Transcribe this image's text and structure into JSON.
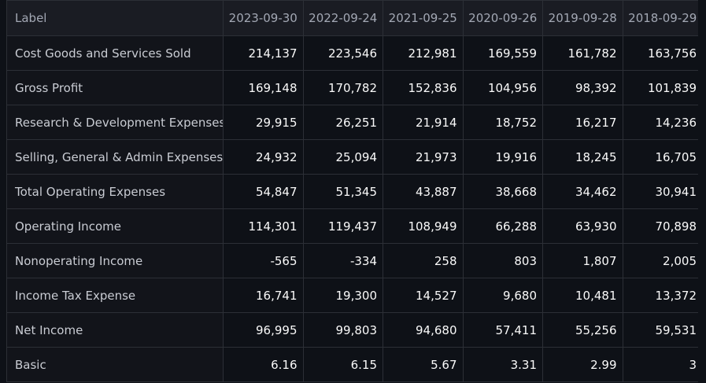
{
  "table": {
    "columns": [
      "Label",
      "2023-09-30",
      "2022-09-24",
      "2021-09-25",
      "2020-09-26",
      "2019-09-28",
      "2018-09-29"
    ],
    "rows": [
      {
        "label": "Cost Goods and Services Sold",
        "values": [
          "214,137",
          "223,546",
          "212,981",
          "169,559",
          "161,782",
          "163,756"
        ]
      },
      {
        "label": "Gross Profit",
        "values": [
          "169,148",
          "170,782",
          "152,836",
          "104,956",
          "98,392",
          "101,839"
        ]
      },
      {
        "label": "Research & Development Expenses",
        "values": [
          "29,915",
          "26,251",
          "21,914",
          "18,752",
          "16,217",
          "14,236"
        ]
      },
      {
        "label": "Selling, General & Admin Expenses",
        "values": [
          "24,932",
          "25,094",
          "21,973",
          "19,916",
          "18,245",
          "16,705"
        ]
      },
      {
        "label": "Total Operating Expenses",
        "values": [
          "54,847",
          "51,345",
          "43,887",
          "38,668",
          "34,462",
          "30,941"
        ]
      },
      {
        "label": "Operating Income",
        "values": [
          "114,301",
          "119,437",
          "108,949",
          "66,288",
          "63,930",
          "70,898"
        ]
      },
      {
        "label": "Nonoperating Income",
        "values": [
          "-565",
          "-334",
          "258",
          "803",
          "1,807",
          "2,005"
        ]
      },
      {
        "label": "Income Tax Expense",
        "values": [
          "16,741",
          "19,300",
          "14,527",
          "9,680",
          "10,481",
          "13,372"
        ]
      },
      {
        "label": "Net Income",
        "values": [
          "96,995",
          "99,803",
          "94,680",
          "57,411",
          "55,256",
          "59,531"
        ]
      },
      {
        "label": "Basic",
        "values": [
          "6.16",
          "6.15",
          "5.67",
          "3.31",
          "2.99",
          "3"
        ]
      }
    ]
  }
}
